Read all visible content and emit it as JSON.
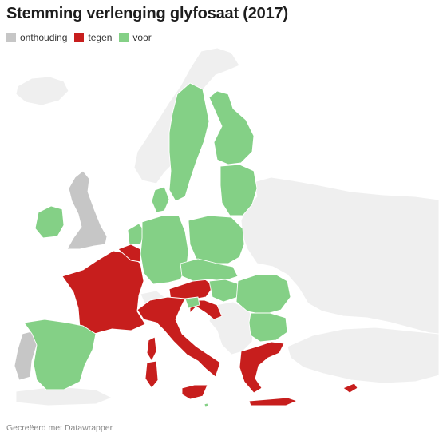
{
  "title": "Stemming verlenging glyfosaat (2017)",
  "legend": [
    {
      "label": "onthouding",
      "color": "#c6c6c6"
    },
    {
      "label": "tegen",
      "color": "#c71e1d"
    },
    {
      "label": "voor",
      "color": "#84d086"
    }
  ],
  "colors": {
    "abstain": "#c6c6c6",
    "against": "#c71e1d",
    "for": "#84d086",
    "non_eu": "#efefef"
  },
  "footer": "Gecreëerd met Datawrapper"
}
